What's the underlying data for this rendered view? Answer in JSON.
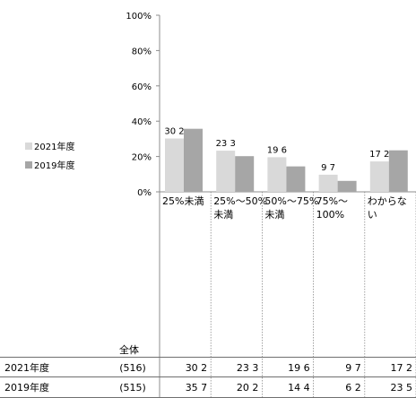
{
  "chart_data": {
    "type": "bar",
    "ylim": [
      0,
      100
    ],
    "yticks": [
      "0%",
      "20%",
      "40%",
      "60%",
      "80%",
      "100%"
    ],
    "categories": [
      "25%未満",
      "25%～50%\n未満",
      "50%～75%\n未満",
      "75%～\n100%",
      "わからな\nい"
    ],
    "series": [
      {
        "name": "2021年度",
        "values": [
          30.2,
          23.3,
          19.6,
          9.7,
          17.2
        ],
        "color": "#d9d9d9"
      },
      {
        "name": "2019年度",
        "values": [
          35.7,
          20.2,
          14.4,
          6.2,
          23.5
        ],
        "color": "#a6a6a6"
      }
    ],
    "data_labels_series": 0,
    "legend_position": "left",
    "grid": false
  },
  "table": {
    "group_header": "全体",
    "rows": [
      {
        "label": "2021年度",
        "n": "(516)",
        "values": [
          "30.2",
          "23.3",
          "19.6",
          "9.7",
          "17.2"
        ]
      },
      {
        "label": "2019年度",
        "n": "(515)",
        "values": [
          "35.7",
          "20.2",
          "14.4",
          "6.2",
          "23.5"
        ]
      }
    ]
  }
}
